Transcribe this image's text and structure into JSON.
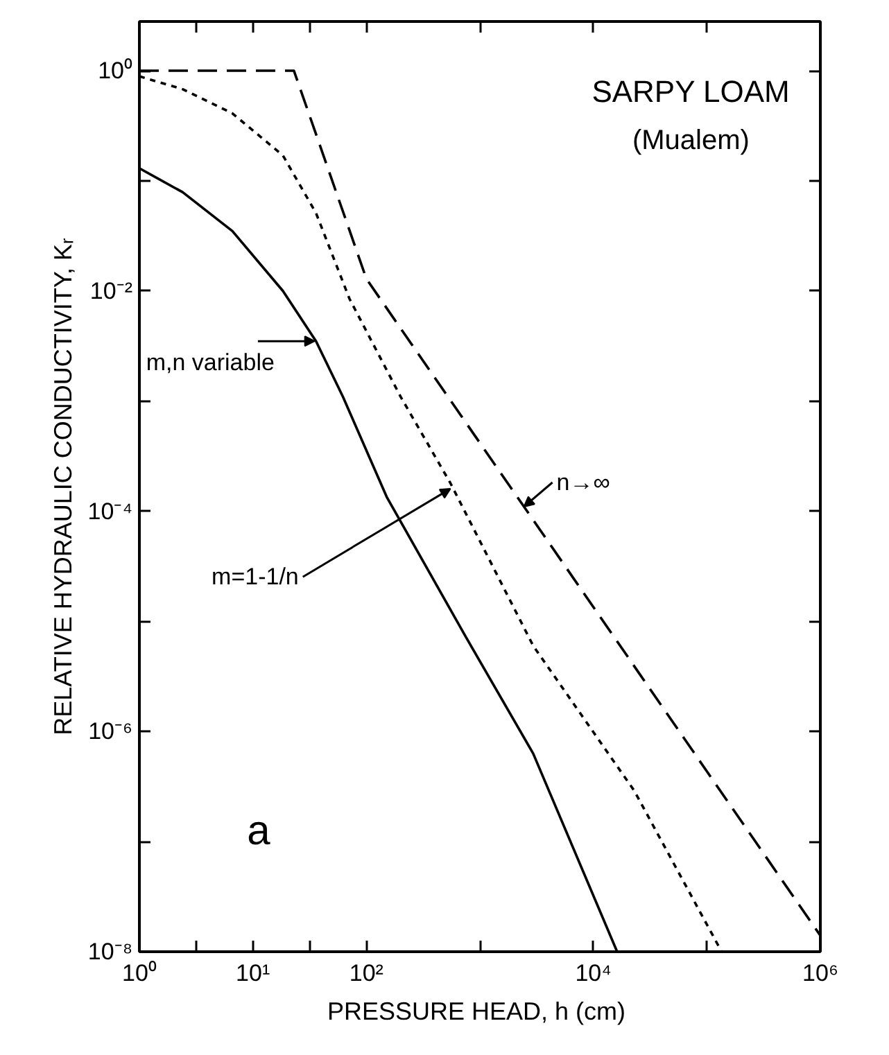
{
  "chart_data": {
    "type": "line",
    "xlabel": "PRESSURE HEAD,  h (cm)",
    "ylabel": "RELATIVE HYDRAULIC CONDUCTIVITY, Kᵣ",
    "log": "xy",
    "grid": false,
    "xlim": [
      1,
      1000000
    ],
    "ylim": [
      1e-08,
      2.8
    ],
    "xticks": [
      {
        "value": 1,
        "label": "10⁰"
      },
      {
        "value": 3.162,
        "label": null
      },
      {
        "value": 10,
        "label": "10¹"
      },
      {
        "value": 31.62,
        "label": null
      },
      {
        "value": 100,
        "label": "10²"
      },
      {
        "value": 1000,
        "label": null
      },
      {
        "value": 10000,
        "label": "10⁴"
      },
      {
        "value": 100000,
        "label": null
      },
      {
        "value": 1000000,
        "label": "10⁶"
      }
    ],
    "yticks": [
      {
        "value": 1,
        "label": "10⁰"
      },
      {
        "value": 0.1,
        "label": null
      },
      {
        "value": 0.01,
        "label": "10⁻²"
      },
      {
        "value": 0.001,
        "label": null
      },
      {
        "value": 0.0001,
        "label": "10⁻⁴"
      },
      {
        "value": 1e-05,
        "label": null
      },
      {
        "value": 1e-06,
        "label": "10⁻⁶"
      },
      {
        "value": 1e-07,
        "label": null
      },
      {
        "value": 1e-08,
        "label": "10⁻⁸"
      }
    ],
    "series": [
      {
        "color": "#000000",
        "line_style": "solid",
        "x": [
          1,
          2.4,
          6.6,
          18.4,
          36,
          62,
          151,
          760,
          2950,
          16200
        ],
        "values": [
          0.13,
          0.079,
          0.035,
          0.01,
          0.0035,
          0.0011,
          0.000135,
          7.1e-06,
          6.3e-07,
          1e-08
        ]
      },
      {
        "color": "#000000",
        "line_style": "dotted",
        "x": [
          1,
          2.4,
          6.6,
          18.4,
          36,
          71,
          200,
          550,
          2950,
          22900,
          135000
        ],
        "values": [
          0.89,
          0.68,
          0.41,
          0.17,
          0.051,
          0.0085,
          0.0011,
          0.00018,
          6e-06,
          2.9e-07,
          1e-08
        ]
      },
      {
        "color": "#000000",
        "line_style": "dashed",
        "x": [
          1,
          23,
          100,
          10000,
          1000000
        ],
        "values": [
          1,
          1,
          0.0129,
          1.35e-05,
          1.4e-08
        ]
      }
    ],
    "annotations": [
      "SARPY LOAM",
      "(Mualem)",
      {
        "text": "m,n variable",
        "x": 35,
        "y": 0.0035
      },
      {
        "text": "m=1-1/n",
        "x": 550,
        "y": 0.00016
      },
      {
        "text": "n→∞",
        "x": 2450,
        "y": 0.00011
      },
      "a"
    ]
  }
}
